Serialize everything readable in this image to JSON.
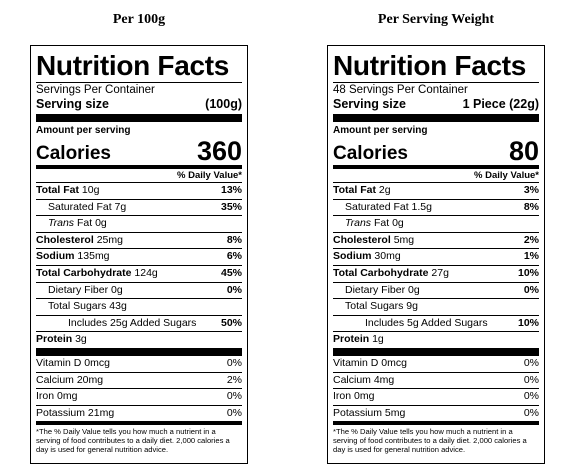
{
  "columns": [
    {
      "heading": "Per 100g",
      "title": "Nutrition Facts",
      "servings_per_container": "Servings Per Container",
      "serving_size_label": "Serving size",
      "serving_size_value": "(100g)",
      "amount_per_serving": "Amount per serving",
      "calories_label": "Calories",
      "calories_value": "360",
      "dv_header": "% Daily Value*",
      "total_fat": {
        "label": "Total Fat",
        "amount": "10g",
        "pct": "13%"
      },
      "saturated_fat": {
        "label": "Saturated Fat 7g",
        "pct": "35%"
      },
      "trans_fat": {
        "label_italic": "Trans",
        "label_rest": "Fat 0g"
      },
      "cholesterol": {
        "label": "Cholesterol",
        "amount": "25mg",
        "pct": "8%"
      },
      "sodium": {
        "label": "Sodium",
        "amount": "135mg",
        "pct": "6%"
      },
      "total_carb": {
        "label": "Total Carbohydrate",
        "amount": "124g",
        "pct": "45%"
      },
      "fiber": {
        "label": "Dietary Fiber 0g",
        "pct": "0%"
      },
      "total_sugars": {
        "label": "Total Sugars 43g"
      },
      "added_sugars": {
        "label": "Includes 25g Added Sugars",
        "pct": "50%"
      },
      "protein": {
        "label": "Protein",
        "amount": "3g"
      },
      "vitamin_d": {
        "label": "Vitamin D 0mcg",
        "pct": "0%"
      },
      "calcium": {
        "label": "Calcium 20mg",
        "pct": "2%"
      },
      "iron": {
        "label": "Iron 0mg",
        "pct": "0%"
      },
      "potassium": {
        "label": "Potassium 21mg",
        "pct": "0%"
      },
      "footnote": "*The % Daily Value tells you how much a nutrient in a serving of food contributes to a daily diet. 2,000 calories a day is used for general nutrition advice."
    },
    {
      "heading": "Per Serving Weight",
      "title": "Nutrition Facts",
      "servings_per_container": "48 Servings Per Container",
      "serving_size_label": "Serving size",
      "serving_size_value": "1 Piece (22g)",
      "amount_per_serving": "Amount per serving",
      "calories_label": "Calories",
      "calories_value": "80",
      "dv_header": "% Daily Value*",
      "total_fat": {
        "label": "Total Fat",
        "amount": "2g",
        "pct": "3%"
      },
      "saturated_fat": {
        "label": "Saturated Fat 1.5g",
        "pct": "8%"
      },
      "trans_fat": {
        "label_italic": "Trans",
        "label_rest": "Fat 0g"
      },
      "cholesterol": {
        "label": "Cholesterol",
        "amount": "5mg",
        "pct": "2%"
      },
      "sodium": {
        "label": "Sodium",
        "amount": "30mg",
        "pct": "1%"
      },
      "total_carb": {
        "label": "Total Carbohydrate",
        "amount": "27g",
        "pct": "10%"
      },
      "fiber": {
        "label": "Dietary Fiber 0g",
        "pct": "0%"
      },
      "total_sugars": {
        "label": "Total Sugars 9g"
      },
      "added_sugars": {
        "label": "Includes 5g Added Sugars",
        "pct": "10%"
      },
      "protein": {
        "label": "Protein",
        "amount": "1g"
      },
      "vitamin_d": {
        "label": "Vitamin D 0mcg",
        "pct": "0%"
      },
      "calcium": {
        "label": "Calcium 4mg",
        "pct": "0%"
      },
      "iron": {
        "label": "Iron 0mg",
        "pct": "0%"
      },
      "potassium": {
        "label": "Potassium 5mg",
        "pct": "0%"
      },
      "footnote": "*The % Daily Value tells you how much a nutrient in a serving of food contributes to a daily diet. 2,000 calories a day is used for general nutrition advice."
    }
  ]
}
